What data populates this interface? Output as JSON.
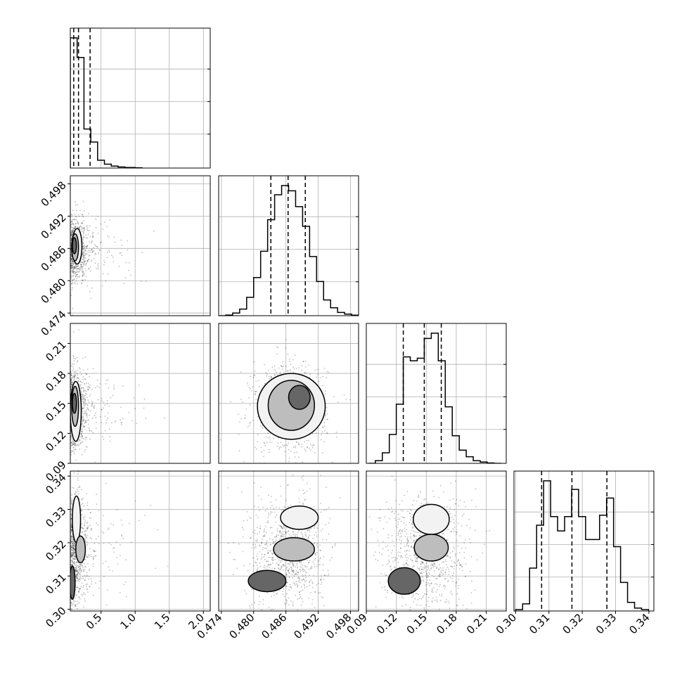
{
  "chart_data": {
    "type": "corner",
    "title": "",
    "grid": true,
    "params": [
      {
        "index": 0,
        "label": "",
        "range": [
          0.05,
          2.1
        ],
        "ticks": [
          "0.5",
          "1.0",
          "1.5",
          "2.0"
        ],
        "tick_values": [
          0.5,
          1.0,
          1.5,
          2.0
        ],
        "quantiles": [
          0.1,
          0.17,
          0.34
        ]
      },
      {
        "index": 1,
        "label": "",
        "range": [
          0.4735,
          0.4995
        ],
        "ticks": [
          "0.474",
          "0.480",
          "0.486",
          "0.492",
          "0.498"
        ],
        "tick_values": [
          0.474,
          0.48,
          0.486,
          0.492,
          0.498
        ],
        "quantiles": [
          0.4832,
          0.4864,
          0.4896
        ]
      },
      {
        "index": 2,
        "label": "",
        "range": [
          0.09,
          0.23
        ],
        "ticks": [
          "0.09",
          "0.12",
          "0.15",
          "0.18",
          "0.21"
        ],
        "tick_values": [
          0.09,
          0.12,
          0.15,
          0.18,
          0.21
        ],
        "quantiles": [
          0.127,
          0.148,
          0.165
        ]
      },
      {
        "index": 3,
        "label": "",
        "range": [
          0.2995,
          0.3415
        ],
        "ticks": [
          "0.30",
          "0.31",
          "0.32",
          "0.33",
          "0.34"
        ],
        "tick_values": [
          0.3,
          0.31,
          0.32,
          0.33,
          0.34
        ],
        "quantiles": [
          0.3078,
          0.3169,
          0.3274
        ]
      }
    ],
    "histograms": [
      {
        "param": 0,
        "bin_edges": [
          0.05,
          0.15,
          0.25,
          0.35,
          0.45,
          0.55,
          0.65,
          0.75,
          0.85,
          1.0,
          1.1
        ],
        "counts": [
          1.0,
          0.85,
          0.3,
          0.2,
          0.06,
          0.03,
          0.015,
          0.008,
          0.004,
          0.002
        ]
      },
      {
        "param": 1,
        "bin_edges": [
          0.4735,
          0.4748,
          0.4761,
          0.4774,
          0.4787,
          0.48,
          0.4813,
          0.4826,
          0.4839,
          0.4852,
          0.4865,
          0.4878,
          0.4891,
          0.4904,
          0.4917,
          0.493,
          0.4943,
          0.4956,
          0.4969,
          0.4982,
          0.4995
        ],
        "counts": [
          0.0,
          0.005,
          0.02,
          0.05,
          0.14,
          0.29,
          0.49,
          0.73,
          0.92,
          0.99,
          0.95,
          0.83,
          0.68,
          0.45,
          0.26,
          0.12,
          0.06,
          0.025,
          0.012,
          0.004
        ]
      },
      {
        "param": 2,
        "bin_edges": [
          0.092,
          0.099,
          0.106,
          0.113,
          0.12,
          0.127,
          0.134,
          0.141,
          0.148,
          0.155,
          0.162,
          0.169,
          0.176,
          0.183,
          0.19,
          0.197,
          0.204,
          0.211,
          0.218,
          0.225
        ],
        "counts": [
          0.0,
          0.02,
          0.08,
          0.22,
          0.45,
          0.81,
          0.78,
          0.8,
          0.95,
          0.99,
          0.78,
          0.43,
          0.21,
          0.1,
          0.05,
          0.02,
          0.01,
          0.003,
          0.0
        ]
      },
      {
        "param": 3,
        "bin_edges": [
          0.3,
          0.3021,
          0.3042,
          0.3063,
          0.3084,
          0.3105,
          0.3126,
          0.3147,
          0.3168,
          0.3189,
          0.321,
          0.3231,
          0.3252,
          0.3273,
          0.3294,
          0.3315,
          0.3336,
          0.3357,
          0.3378,
          0.3399
        ],
        "counts": [
          0.01,
          0.05,
          0.3,
          0.6,
          0.91,
          0.66,
          0.56,
          0.66,
          0.85,
          0.66,
          0.5,
          0.5,
          0.67,
          0.79,
          0.45,
          0.2,
          0.06,
          0.02,
          0.01
        ]
      }
    ],
    "scatter_panels": [
      {
        "x_param": 0,
        "y_param": 1,
        "center": [
          0.2,
          0.4857
        ],
        "spread": [
          0.12,
          0.003
        ],
        "contours": [
          {
            "cx": 0.15,
            "cy": 0.4864,
            "rx": 0.07,
            "ry": 0.0033
          },
          {
            "cx": 0.12,
            "cy": 0.4862,
            "rx": 0.05,
            "ry": 0.0025
          },
          {
            "cx": 0.11,
            "cy": 0.4865,
            "rx": 0.03,
            "ry": 0.0015
          }
        ]
      },
      {
        "x_param": 0,
        "y_param": 2,
        "center": [
          0.2,
          0.145
        ],
        "spread": [
          0.12,
          0.02
        ],
        "contours": [
          {
            "cx": 0.13,
            "cy": 0.142,
            "rx": 0.08,
            "ry": 0.03
          },
          {
            "cx": 0.12,
            "cy": 0.147,
            "rx": 0.05,
            "ry": 0.02
          },
          {
            "cx": 0.11,
            "cy": 0.15,
            "rx": 0.03,
            "ry": 0.01
          }
        ]
      },
      {
        "x_param": 0,
        "y_param": 3,
        "center": [
          0.2,
          0.318
        ],
        "spread": [
          0.12,
          0.008
        ],
        "contours": [
          {
            "cx": 0.14,
            "cy": 0.327,
            "rx": 0.06,
            "ry": 0.007
          },
          {
            "cx": 0.2,
            "cy": 0.318,
            "rx": 0.07,
            "ry": 0.004
          },
          {
            "cx": 0.08,
            "cy": 0.308,
            "rx": 0.04,
            "ry": 0.005
          }
        ]
      },
      {
        "x_param": 1,
        "y_param": 2,
        "center": [
          0.4865,
          0.146
        ],
        "spread": [
          0.0035,
          0.022
        ],
        "contours": [
          {
            "cx": 0.487,
            "cy": 0.147,
            "rx": 0.0063,
            "ry": 0.033
          },
          {
            "cx": 0.487,
            "cy": 0.148,
            "rx": 0.0043,
            "ry": 0.025
          },
          {
            "cx": 0.4885,
            "cy": 0.156,
            "rx": 0.002,
            "ry": 0.012
          }
        ]
      },
      {
        "x_param": 1,
        "y_param": 3,
        "center": [
          0.4865,
          0.317
        ],
        "spread": [
          0.0035,
          0.009
        ],
        "contours": [
          {
            "cx": 0.4885,
            "cy": 0.3275,
            "rx": 0.0035,
            "ry": 0.0035
          },
          {
            "cx": 0.4875,
            "cy": 0.318,
            "rx": 0.0038,
            "ry": 0.0035
          },
          {
            "cx": 0.4825,
            "cy": 0.3085,
            "rx": 0.0035,
            "ry": 0.0032
          }
        ]
      },
      {
        "x_param": 2,
        "y_param": 3,
        "center": [
          0.148,
          0.317
        ],
        "spread": [
          0.022,
          0.009
        ],
        "contours": [
          {
            "cx": 0.155,
            "cy": 0.327,
            "rx": 0.018,
            "ry": 0.0045
          },
          {
            "cx": 0.155,
            "cy": 0.3185,
            "rx": 0.017,
            "ry": 0.004
          },
          {
            "cx": 0.128,
            "cy": 0.3085,
            "rx": 0.016,
            "ry": 0.004
          }
        ]
      }
    ]
  }
}
